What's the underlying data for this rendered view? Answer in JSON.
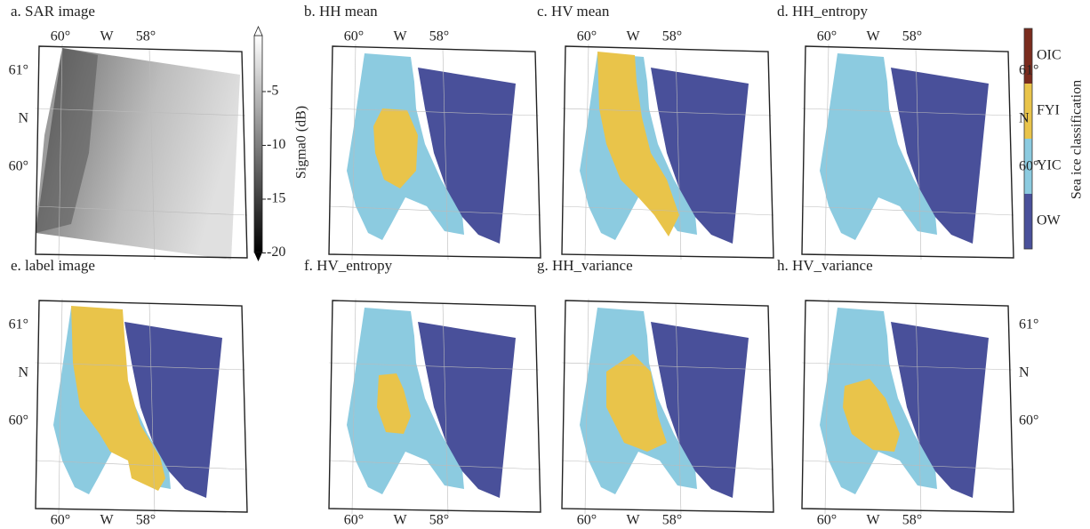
{
  "panels": [
    {
      "title": "a. SAR image",
      "top_labels": [
        "60°",
        "W",
        "58°"
      ],
      "left_labels": [
        "61°",
        "N",
        "60°"
      ]
    },
    {
      "title": "b. HH mean",
      "top_labels": [
        "60°",
        "W",
        "58°"
      ]
    },
    {
      "title": "c. HV mean",
      "top_labels": [
        "60°",
        "W",
        "58°"
      ]
    },
    {
      "title": "d. HH_entropy",
      "top_labels": [
        "60°",
        "W",
        "58°"
      ],
      "right_labels": [
        "61°",
        "N",
        "60°"
      ]
    },
    {
      "title": "e. label image",
      "bottom_labels": [
        "60°",
        "W",
        "58°"
      ],
      "left_labels": [
        "61°",
        "N",
        "60°"
      ]
    },
    {
      "title": "f. HV_entropy",
      "bottom_labels": [
        "60°",
        "W",
        "58°"
      ]
    },
    {
      "title": "g. HH_variance",
      "bottom_labels": [
        "60°",
        "W",
        "58°"
      ]
    },
    {
      "title": "h. HV_variance",
      "bottom_labels": [
        "60°",
        "W",
        "58°"
      ],
      "right_labels": [
        "61°",
        "N",
        "60°"
      ]
    }
  ],
  "colorbar": {
    "label": "Sigma0 (dB)",
    "ticks": [
      "-5",
      "-10",
      "-15",
      "-20"
    ]
  },
  "legend": {
    "title": "Sea ice classification",
    "classes": [
      {
        "name": "OIC",
        "color": "#7a2c1e"
      },
      {
        "name": "FYI",
        "color": "#e9c44a"
      },
      {
        "name": "YIC",
        "color": "#8ccbe0"
      },
      {
        "name": "OW",
        "color": "#49509a"
      }
    ]
  }
}
